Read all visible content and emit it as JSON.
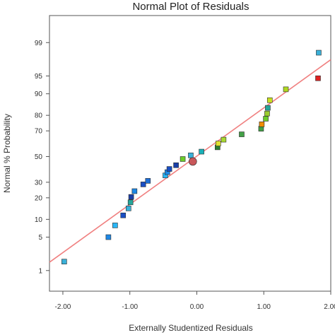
{
  "chart_data": {
    "type": "scatter",
    "title": "Normal Plot of Residuals",
    "xlabel": "Externally Studentized Residuals",
    "ylabel": "Normal % Probability",
    "x_ticks": [
      "-2.00",
      "-1.00",
      "0.00",
      "1.00",
      "2.00"
    ],
    "y_ticks": [
      "1",
      "5",
      "10",
      "20",
      "30",
      "50",
      "70",
      "80",
      "90",
      "95",
      "99"
    ],
    "xlim": [
      -2.2,
      2.0
    ],
    "ylim_percent": [
      0.3,
      99.8
    ],
    "y_scale": "normal-probability",
    "grid": false,
    "reference_line": {
      "color": "#f08080",
      "points": [
        [
          -2.2,
          1.55
        ],
        [
          2.0,
          97.6
        ]
      ]
    },
    "points": [
      {
        "x": -1.98,
        "y": 1.6,
        "color": "#3ab0d8"
      },
      {
        "x": -1.32,
        "y": 5.0,
        "color": "#1e88e5"
      },
      {
        "x": -1.22,
        "y": 8.0,
        "color": "#29b6f6"
      },
      {
        "x": -1.1,
        "y": 11.5,
        "color": "#1a4fc4"
      },
      {
        "x": -1.02,
        "y": 14.5,
        "color": "#3ab0d8"
      },
      {
        "x": -0.99,
        "y": 17.5,
        "color": "#26a69a"
      },
      {
        "x": -0.98,
        "y": 20.5,
        "color": "#1a3fa8"
      },
      {
        "x": -0.93,
        "y": 24.0,
        "color": "#1e88e5"
      },
      {
        "x": -0.8,
        "y": 28.5,
        "color": "#1a4fc4"
      },
      {
        "x": -0.73,
        "y": 31.0,
        "color": "#1e6fd8"
      },
      {
        "x": -0.47,
        "y": 35.0,
        "color": "#29b6f6"
      },
      {
        "x": -0.44,
        "y": 37.5,
        "color": "#1e88e5"
      },
      {
        "x": -0.41,
        "y": 40.0,
        "color": "#1a4fc4"
      },
      {
        "x": -0.31,
        "y": 43.0,
        "color": "#1a3fa8"
      },
      {
        "x": -0.21,
        "y": 48.0,
        "color": "#6ccc2a"
      },
      {
        "x": -0.09,
        "y": 51.0,
        "color": "#3ab0d8"
      },
      {
        "x": -0.06,
        "y": 46.0,
        "color": "#c8575a",
        "marker": "circle"
      },
      {
        "x": 0.07,
        "y": 54.0,
        "color": "#1ab0b8"
      },
      {
        "x": 0.31,
        "y": 57.5,
        "color": "#2e7d32"
      },
      {
        "x": 0.32,
        "y": 60.5,
        "color": "#e0e030"
      },
      {
        "x": 0.4,
        "y": 63.5,
        "color": "#a8d830"
      },
      {
        "x": 0.67,
        "y": 67.5,
        "color": "#43a047"
      },
      {
        "x": 0.96,
        "y": 71.5,
        "color": "#43a047"
      },
      {
        "x": 0.97,
        "y": 74.5,
        "color": "#f08c00"
      },
      {
        "x": 1.03,
        "y": 78.0,
        "color": "#6ccc2a"
      },
      {
        "x": 1.05,
        "y": 81.0,
        "color": "#9ccc30"
      },
      {
        "x": 1.06,
        "y": 84.0,
        "color": "#26a69a"
      },
      {
        "x": 1.09,
        "y": 87.5,
        "color": "#c8e020"
      },
      {
        "x": 1.33,
        "y": 91.5,
        "color": "#b0d820"
      },
      {
        "x": 1.81,
        "y": 94.5,
        "color": "#e02020"
      },
      {
        "x": 1.82,
        "y": 98.3,
        "color": "#3ab0d8"
      }
    ]
  }
}
